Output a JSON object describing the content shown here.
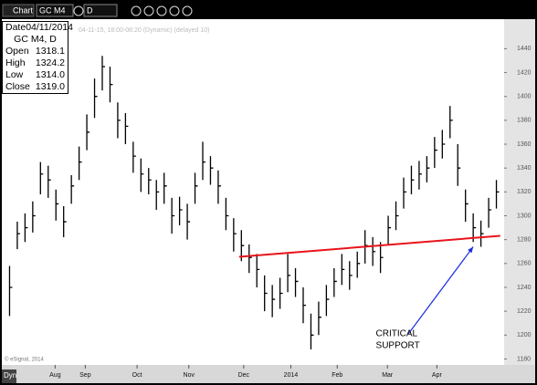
{
  "toolbar": {
    "window": "Chart",
    "symbol": "GC M4",
    "interval": "D"
  },
  "info_box": {
    "date_label": "Date",
    "date": "04/11/2014",
    "symbol": "GC M4, D",
    "rows": [
      [
        "Open",
        "1318.1"
      ],
      [
        "High",
        "1324.2"
      ],
      [
        "Low",
        "1314.0"
      ],
      [
        "Close",
        "1319.0"
      ]
    ]
  },
  "footer": {
    "mode": "Dyn"
  },
  "chart_data": {
    "type": "ohlc",
    "subtitle": "04-11-15, 18:00-08:20 (Dynamic) (delayed 10)",
    "copyright": "© eSignal, 2014",
    "color": "#000000",
    "x": [
      0,
      1,
      2,
      3,
      4,
      5,
      6,
      7,
      8,
      9,
      10,
      11,
      12,
      13,
      14,
      15,
      16,
      17,
      18,
      19,
      20,
      21,
      22,
      23,
      24,
      25,
      26,
      27,
      28,
      29,
      30,
      31,
      32,
      33,
      34,
      35,
      36,
      37,
      38,
      39,
      40,
      41,
      42,
      43,
      44,
      45,
      46,
      47,
      48,
      49,
      50,
      51,
      52,
      53,
      54,
      55,
      56,
      57,
      58,
      59,
      60,
      61,
      62,
      63
    ],
    "high": [
      1258,
      1295,
      1302,
      1312,
      1345,
      1342,
      1322,
      1308,
      1334,
      1358,
      1385,
      1415,
      1434,
      1425,
      1395,
      1386,
      1362,
      1348,
      1340,
      1330,
      1336,
      1315,
      1316,
      1310,
      1336,
      1362,
      1350,
      1338,
      1315,
      1298,
      1288,
      1276,
      1268,
      1250,
      1242,
      1248,
      1268,
      1256,
      1240,
      1218,
      1228,
      1242,
      1256,
      1268,
      1262,
      1270,
      1288,
      1282,
      1278,
      1300,
      1312,
      1332,
      1342,
      1346,
      1350,
      1366,
      1372,
      1392,
      1360,
      1322,
      1302,
      1296,
      1315,
      1330
    ],
    "low": [
      1216,
      1272,
      1278,
      1286,
      1318,
      1315,
      1296,
      1282,
      1310,
      1330,
      1355,
      1382,
      1405,
      1395,
      1365,
      1360,
      1336,
      1320,
      1318,
      1305,
      1310,
      1285,
      1292,
      1280,
      1310,
      1330,
      1326,
      1310,
      1288,
      1270,
      1262,
      1252,
      1240,
      1220,
      1215,
      1222,
      1236,
      1232,
      1210,
      1188,
      1200,
      1216,
      1232,
      1242,
      1238,
      1248,
      1260,
      1258,
      1252,
      1276,
      1288,
      1306,
      1318,
      1322,
      1328,
      1340,
      1348,
      1365,
      1325,
      1295,
      1278,
      1274,
      1290,
      1306
    ],
    "close": [
      1240,
      1285,
      1290,
      1300,
      1335,
      1330,
      1310,
      1295,
      1325,
      1345,
      1370,
      1400,
      1425,
      1410,
      1380,
      1375,
      1350,
      1335,
      1330,
      1320,
      1325,
      1300,
      1305,
      1295,
      1325,
      1345,
      1340,
      1325,
      1300,
      1285,
      1275,
      1265,
      1255,
      1235,
      1230,
      1235,
      1250,
      1245,
      1225,
      1200,
      1215,
      1230,
      1245,
      1255,
      1250,
      1260,
      1275,
      1270,
      1265,
      1290,
      1300,
      1320,
      1330,
      1335,
      1340,
      1355,
      1360,
      1380,
      1340,
      1310,
      1290,
      1285,
      1305,
      1320
    ],
    "xlim": [
      -1,
      64
    ],
    "ylim": [
      1175,
      1464
    ],
    "yticks": [
      1180,
      1200,
      1220,
      1240,
      1260,
      1280,
      1300,
      1320,
      1340,
      1360,
      1380,
      1400,
      1420,
      1440
    ],
    "xticks": [
      {
        "value": 5.9,
        "label": "Aug"
      },
      {
        "value": 9.8,
        "label": "Sep"
      },
      {
        "value": 16.5,
        "label": "Oct"
      },
      {
        "value": 23.2,
        "label": "Nov"
      },
      {
        "value": 30.3,
        "label": "Dec"
      },
      {
        "value": 36.4,
        "label": "2014"
      },
      {
        "value": 42.4,
        "label": "Feb"
      },
      {
        "value": 48.9,
        "label": "Mar"
      },
      {
        "value": 55.3,
        "label": "Apr"
      }
    ],
    "support_line": {
      "x": [
        29.7,
        63.5
      ],
      "y": [
        1265.6,
        1283.2
      ],
      "color": "#e8141b"
    },
    "annotation": {
      "lines": [
        "CRITICAL",
        "SUPPORT"
      ],
      "x": 47.4,
      "y": 1201,
      "arrow": {
        "x": [
          51.6,
          60
        ],
        "y": [
          1201,
          1274
        ],
        "color": "#1a2fe0"
      }
    }
  }
}
